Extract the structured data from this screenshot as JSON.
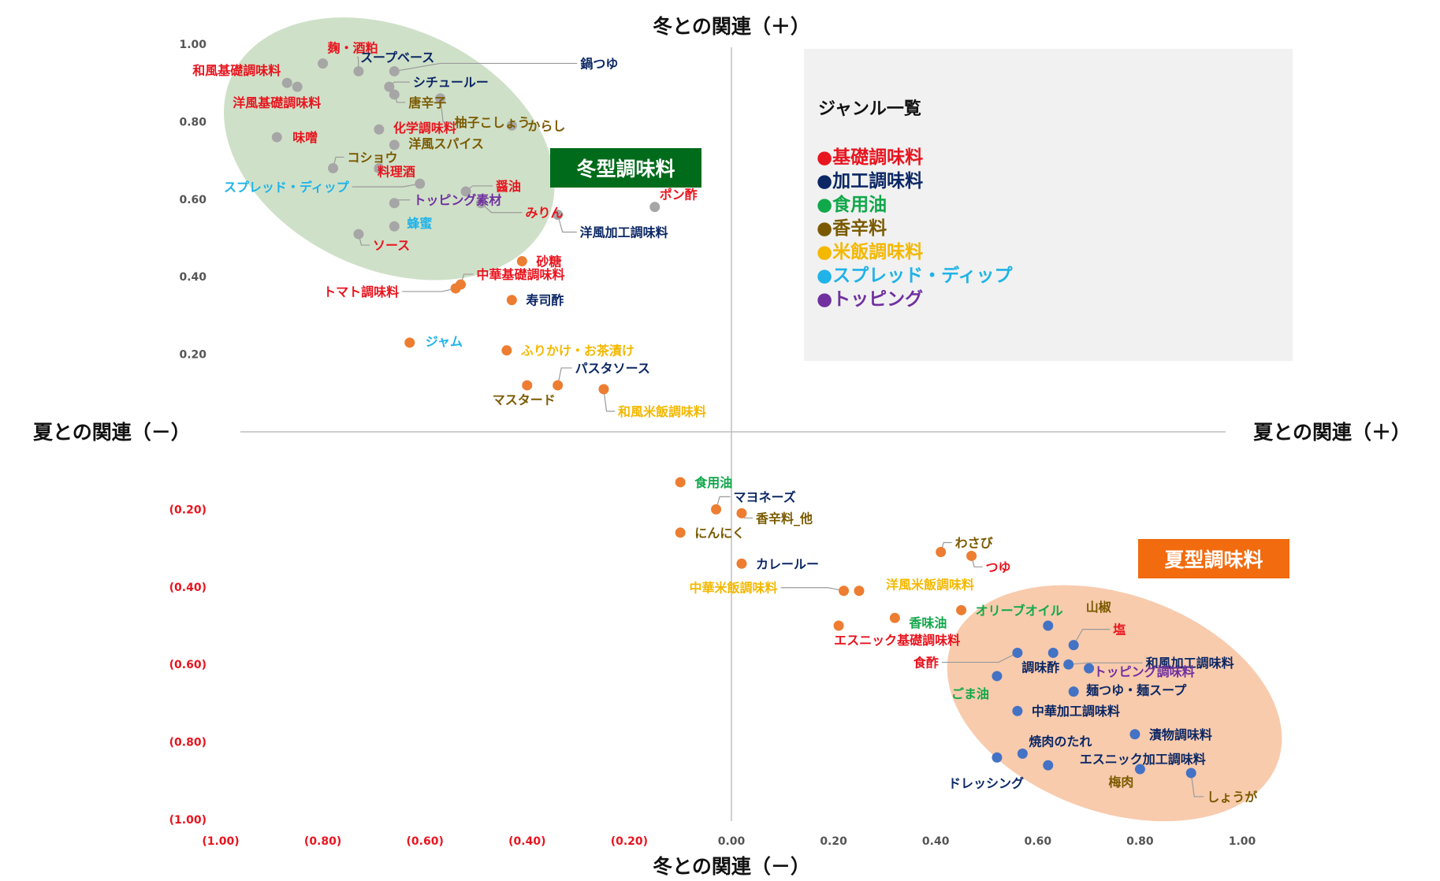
{
  "colors": {
    "genre_基礎調味料": "#e8141e",
    "genre_加工調味料": "#0b2764",
    "genre_食用油": "#11a84a",
    "genre_香辛料": "#7a5a00",
    "genre_米飯調味料": "#f4b800",
    "genre_スプレッド・ディップ": "#1fb3e8",
    "genre_トッピング": "#7030a0",
    "marker_winter": "#a6a6a6",
    "marker_mid": "#ed7d31",
    "marker_summer": "#4472c4",
    "winter_cluster_fill": "#cfe0c8",
    "summer_cluster_fill": "#f8cbad",
    "winter_label_bg": "#006b1a",
    "summer_label_bg": "#f26b0f",
    "legend_bg": "#f1f1f1",
    "negative_tick": "#e8141e",
    "positive_tick": "#555555"
  },
  "chart_data": {
    "type": "scatter",
    "xlabel_positive": "夏との関連（＋）",
    "xlabel_negative": "夏との関連（－）",
    "ylabel_positive": "冬との関連（＋）",
    "ylabel_negative": "冬との関連（－）",
    "xlim": [
      -1.0,
      1.0
    ],
    "ylim": [
      -1.0,
      1.0
    ],
    "x_ticks": [
      {
        "value": -1.0,
        "label": "(1.00)"
      },
      {
        "value": -0.8,
        "label": "(0.80)"
      },
      {
        "value": -0.6,
        "label": "(0.60)"
      },
      {
        "value": -0.4,
        "label": "(0.40)"
      },
      {
        "value": -0.2,
        "label": "(0.20)"
      },
      {
        "value": 0.0,
        "label": "0.00"
      },
      {
        "value": 0.2,
        "label": "0.20"
      },
      {
        "value": 0.4,
        "label": "0.40"
      },
      {
        "value": 0.6,
        "label": "0.60"
      },
      {
        "value": 0.8,
        "label": "0.80"
      },
      {
        "value": 1.0,
        "label": "1.00"
      }
    ],
    "y_ticks": [
      {
        "value": 1.0,
        "label": "1.00"
      },
      {
        "value": 0.8,
        "label": "0.80"
      },
      {
        "value": 0.6,
        "label": "0.60"
      },
      {
        "value": 0.4,
        "label": "0.40"
      },
      {
        "value": 0.2,
        "label": "0.20"
      },
      {
        "value": -0.2,
        "label": "(0.20)"
      },
      {
        "value": -0.4,
        "label": "(0.40)"
      },
      {
        "value": -0.6,
        "label": "(0.60)"
      },
      {
        "value": -0.8,
        "label": "(0.80)"
      },
      {
        "value": -1.0,
        "label": "(1.00)"
      }
    ],
    "legend": {
      "title": "ジャンル一覧",
      "placement": "top-right",
      "items": [
        {
          "label": "●基礎調味料",
          "genre": "基礎調味料"
        },
        {
          "label": "●加工調味料",
          "genre": "加工調味料"
        },
        {
          "label": "●食用油",
          "genre": "食用油"
        },
        {
          "label": "●香辛料",
          "genre": "香辛料"
        },
        {
          "label": "●米飯調味料",
          "genre": "米飯調味料"
        },
        {
          "label": "●スプレッド・ディップ",
          "genre": "スプレッド・ディップ"
        },
        {
          "label": "●トッピング",
          "genre": "トッピング"
        }
      ]
    },
    "clusters": [
      {
        "label": "冬型調味料",
        "center": [
          -0.67,
          0.73
        ],
        "radius": [
          0.34,
          0.31
        ],
        "rotation_deg": 25,
        "fill": "winter"
      },
      {
        "label": "夏型調味料",
        "center": [
          0.75,
          -0.7
        ],
        "radius": [
          0.34,
          0.28
        ],
        "rotation_deg": 20,
        "fill": "summer"
      }
    ],
    "points": [
      {
        "name": "麹・酒粕",
        "x": -0.8,
        "y": 0.95,
        "genre": "基礎調味料",
        "group": "winter"
      },
      {
        "name": "スープベース",
        "x": -0.73,
        "y": 0.93,
        "genre": "加工調味料",
        "group": "winter"
      },
      {
        "name": "鍋つゆ",
        "x": -0.66,
        "y": 0.93,
        "genre": "加工調味料",
        "group": "winter"
      },
      {
        "name": "和風基礎調味料",
        "x": -0.87,
        "y": 0.9,
        "genre": "基礎調味料",
        "group": "winter"
      },
      {
        "name": "シチュールー",
        "x": -0.67,
        "y": 0.89,
        "genre": "加工調味料",
        "group": "winter"
      },
      {
        "name": "洋風基礎調味料",
        "x": -0.85,
        "y": 0.89,
        "genre": "基礎調味料",
        "group": "winter"
      },
      {
        "name": "唐辛子",
        "x": -0.66,
        "y": 0.87,
        "genre": "香辛料",
        "group": "winter"
      },
      {
        "name": "柚子こしょう",
        "x": -0.57,
        "y": 0.86,
        "genre": "香辛料",
        "group": "winter"
      },
      {
        "name": "からし",
        "x": -0.43,
        "y": 0.79,
        "genre": "香辛料",
        "group": "winter"
      },
      {
        "name": "化学調味料",
        "x": -0.69,
        "y": 0.78,
        "genre": "基礎調味料",
        "group": "winter"
      },
      {
        "name": "味噌",
        "x": -0.89,
        "y": 0.76,
        "genre": "基礎調味料",
        "group": "winter"
      },
      {
        "name": "洋風スパイス",
        "x": -0.66,
        "y": 0.74,
        "genre": "香辛料",
        "group": "winter"
      },
      {
        "name": "コショウ",
        "x": -0.78,
        "y": 0.68,
        "genre": "香辛料",
        "group": "winter"
      },
      {
        "name": "料理酒",
        "x": -0.69,
        "y": 0.68,
        "genre": "基礎調味料",
        "group": "winter"
      },
      {
        "name": "醤油",
        "x": -0.52,
        "y": 0.62,
        "genre": "基礎調味料",
        "group": "winter"
      },
      {
        "name": "スプレッド・ディップ",
        "x": -0.61,
        "y": 0.64,
        "genre": "スプレッド・ディップ",
        "group": "winter"
      },
      {
        "name": "トッピング素材",
        "x": -0.66,
        "y": 0.59,
        "genre": "トッピング",
        "group": "winter"
      },
      {
        "name": "みりん",
        "x": -0.49,
        "y": 0.59,
        "genre": "基礎調味料",
        "group": "winter"
      },
      {
        "name": "洋風加工調味料",
        "x": -0.34,
        "y": 0.56,
        "genre": "加工調味料",
        "group": "winter"
      },
      {
        "name": "ポン酢",
        "x": -0.15,
        "y": 0.58,
        "genre": "基礎調味料",
        "group": "winter"
      },
      {
        "name": "蜂蜜",
        "x": -0.66,
        "y": 0.53,
        "genre": "スプレッド・ディップ",
        "group": "winter"
      },
      {
        "name": "ソース",
        "x": -0.73,
        "y": 0.51,
        "genre": "基礎調味料",
        "group": "winter"
      },
      {
        "name": "砂糖",
        "x": -0.41,
        "y": 0.44,
        "genre": "基礎調味料",
        "group": "mid"
      },
      {
        "name": "中華基礎調味料",
        "x": -0.53,
        "y": 0.38,
        "genre": "基礎調味料",
        "group": "mid"
      },
      {
        "name": "トマト調味料",
        "x": -0.54,
        "y": 0.37,
        "genre": "基礎調味料",
        "group": "mid"
      },
      {
        "name": "寿司酢",
        "x": -0.43,
        "y": 0.34,
        "genre": "加工調味料",
        "group": "mid"
      },
      {
        "name": "ジャム",
        "x": -0.63,
        "y": 0.23,
        "genre": "スプレッド・ディップ",
        "group": "mid"
      },
      {
        "name": "ふりかけ・お茶漬け",
        "x": -0.44,
        "y": 0.21,
        "genre": "米飯調味料",
        "group": "mid"
      },
      {
        "name": "パスタソース",
        "x": -0.34,
        "y": 0.12,
        "genre": "加工調味料",
        "group": "mid"
      },
      {
        "name": "マスタード",
        "x": -0.4,
        "y": 0.12,
        "genre": "香辛料",
        "group": "mid"
      },
      {
        "name": "和風米飯調味料",
        "x": -0.25,
        "y": 0.11,
        "genre": "米飯調味料",
        "group": "mid"
      },
      {
        "name": "食用油",
        "x": -0.1,
        "y": -0.13,
        "genre": "食用油",
        "group": "mid"
      },
      {
        "name": "マヨネーズ",
        "x": -0.03,
        "y": -0.2,
        "genre": "加工調味料",
        "group": "mid"
      },
      {
        "name": "香辛料_他",
        "x": 0.02,
        "y": -0.21,
        "genre": "香辛料",
        "group": "mid"
      },
      {
        "name": "にんにく",
        "x": -0.1,
        "y": -0.26,
        "genre": "香辛料",
        "group": "mid"
      },
      {
        "name": "わさび",
        "x": 0.41,
        "y": -0.31,
        "genre": "香辛料",
        "group": "mid"
      },
      {
        "name": "つゆ",
        "x": 0.47,
        "y": -0.32,
        "genre": "基礎調味料",
        "group": "mid"
      },
      {
        "name": "カレールー",
        "x": 0.02,
        "y": -0.34,
        "genre": "加工調味料",
        "group": "mid"
      },
      {
        "name": "中華米飯調味料",
        "x": 0.22,
        "y": -0.41,
        "genre": "米飯調味料",
        "group": "mid"
      },
      {
        "name": "洋風米飯調味料",
        "x": 0.25,
        "y": -0.41,
        "genre": "米飯調味料",
        "group": "mid"
      },
      {
        "name": "オリーブオイル",
        "x": 0.45,
        "y": -0.46,
        "genre": "食用油",
        "group": "mid"
      },
      {
        "name": "香味油",
        "x": 0.32,
        "y": -0.48,
        "genre": "食用油",
        "group": "mid"
      },
      {
        "name": "エスニック基礎調味料",
        "x": 0.21,
        "y": -0.5,
        "genre": "基礎調味料",
        "group": "mid"
      },
      {
        "name": "山椒",
        "x": 0.62,
        "y": -0.5,
        "genre": "香辛料",
        "group": "summer"
      },
      {
        "name": "塩",
        "x": 0.67,
        "y": -0.55,
        "genre": "基礎調味料",
        "group": "summer"
      },
      {
        "name": "食酢",
        "x": 0.56,
        "y": -0.57,
        "genre": "基礎調味料",
        "group": "summer"
      },
      {
        "name": "調味酢",
        "x": 0.63,
        "y": -0.57,
        "genre": "加工調味料",
        "group": "summer"
      },
      {
        "name": "和風加工調味料",
        "x": 0.66,
        "y": -0.6,
        "genre": "加工調味料",
        "group": "summer"
      },
      {
        "name": "トッピング調味料",
        "x": 0.7,
        "y": -0.61,
        "genre": "トッピング",
        "group": "summer"
      },
      {
        "name": "ごま油",
        "x": 0.52,
        "y": -0.63,
        "genre": "食用油",
        "group": "summer"
      },
      {
        "name": "麺つゆ・麺スープ",
        "x": 0.67,
        "y": -0.67,
        "genre": "加工調味料",
        "group": "summer"
      },
      {
        "name": "中華加工調味料",
        "x": 0.56,
        "y": -0.72,
        "genre": "加工調味料",
        "group": "summer"
      },
      {
        "name": "漬物調味料",
        "x": 0.79,
        "y": -0.78,
        "genre": "加工調味料",
        "group": "summer"
      },
      {
        "name": "焼肉のたれ",
        "x": 0.57,
        "y": -0.83,
        "genre": "加工調味料",
        "group": "summer"
      },
      {
        "name": "ドレッシング",
        "x": 0.52,
        "y": -0.84,
        "genre": "加工調味料",
        "group": "summer"
      },
      {
        "name": "エスニック加工調味料",
        "x": 0.62,
        "y": -0.86,
        "genre": "加工調味料",
        "group": "summer"
      },
      {
        "name": "梅肉",
        "x": 0.8,
        "y": -0.87,
        "genre": "香辛料",
        "group": "summer"
      },
      {
        "name": "しょうが",
        "x": 0.9,
        "y": -0.88,
        "genre": "香辛料",
        "group": "summer"
      }
    ]
  }
}
